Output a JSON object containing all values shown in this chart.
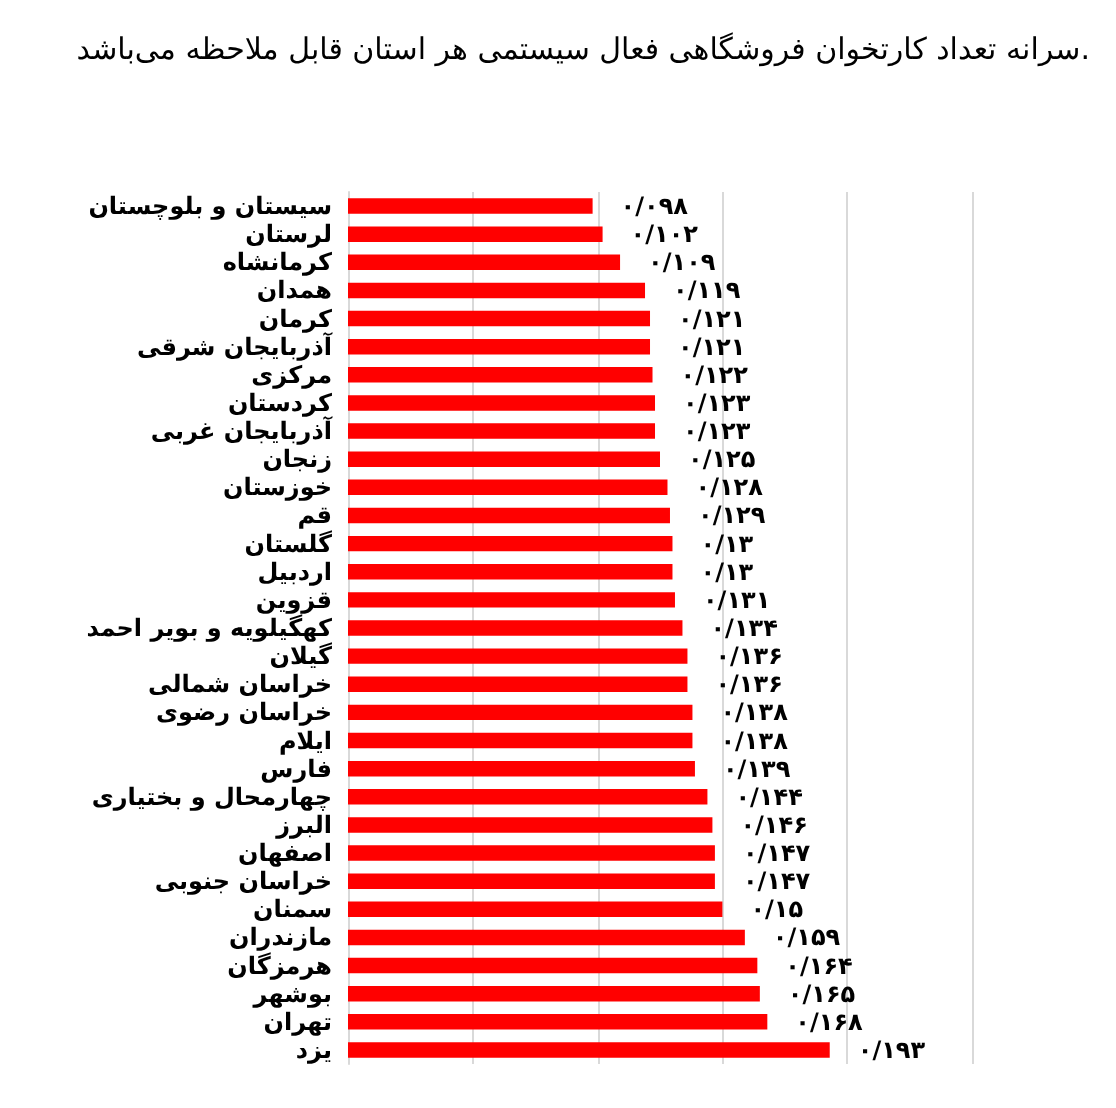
{
  "chart_data": {
    "type": "bar",
    "orientation": "horizontal",
    "title": "سرانه تعداد کارتخوان فروشگاهی فعال سیستمی هر استان قابل ملاحظه می‌باشد.",
    "categories": [
      "سیستان و بلوچستان",
      "لرستان",
      "کرمانشاه",
      "همدان",
      "کرمان",
      "آذربایجان شرقی",
      "مرکزی",
      "کردستان",
      "آذربایجان غربی",
      "زنجان",
      "خوزستان",
      "قم",
      "گلستان",
      "اردبیل",
      "قزوین",
      "کهگیلویه و بویر احمد",
      "گیلان",
      "خراسان شمالی",
      "خراسان رضوی",
      "ایلام",
      "فارس",
      "چهارمحال و بختیاری",
      "البرز",
      "اصفهان",
      "خراسان جنوبی",
      "سمنان",
      "مازندران",
      "هرمزگان",
      "بوشهر",
      "تهران",
      "یزد"
    ],
    "values": [
      0.098,
      0.102,
      0.109,
      0.119,
      0.121,
      0.121,
      0.122,
      0.123,
      0.123,
      0.125,
      0.128,
      0.129,
      0.13,
      0.13,
      0.131,
      0.134,
      0.136,
      0.136,
      0.138,
      0.138,
      0.139,
      0.144,
      0.146,
      0.147,
      0.147,
      0.15,
      0.159,
      0.164,
      0.165,
      0.168,
      0.193
    ],
    "value_labels": [
      "۰/۰۹۸",
      "۰/۱۰۲",
      "۰/۱۰۹",
      "۰/۱۱۹",
      "۰/۱۲۱",
      "۰/۱۲۱",
      "۰/۱۲۲",
      "۰/۱۲۳",
      "۰/۱۲۳",
      "۰/۱۲۵",
      "۰/۱۲۸",
      "۰/۱۲۹",
      "۰/۱۳",
      "۰/۱۳",
      "۰/۱۳۱",
      "۰/۱۳۴",
      "۰/۱۳۶",
      "۰/۱۳۶",
      "۰/۱۳۸",
      "۰/۱۳۸",
      "۰/۱۳۹",
      "۰/۱۴۴",
      "۰/۱۴۶",
      "۰/۱۴۷",
      "۰/۱۴۷",
      "۰/۱۵",
      "۰/۱۵۹",
      "۰/۱۶۴",
      "۰/۱۶۵",
      "۰/۱۶۸",
      "۰/۱۹۳"
    ],
    "color": "#ff0000",
    "xlim": [
      0,
      0.25
    ],
    "xticks": [
      {
        "value": 0,
        "label": null
      },
      {
        "value": 0.05,
        "label": null
      },
      {
        "value": 0.1,
        "label": null
      },
      {
        "value": 0.15,
        "label": null
      },
      {
        "value": 0.2,
        "label": null
      },
      {
        "value": 0.25,
        "label": null
      }
    ],
    "grid": "x",
    "tick_labels": "y"
  }
}
